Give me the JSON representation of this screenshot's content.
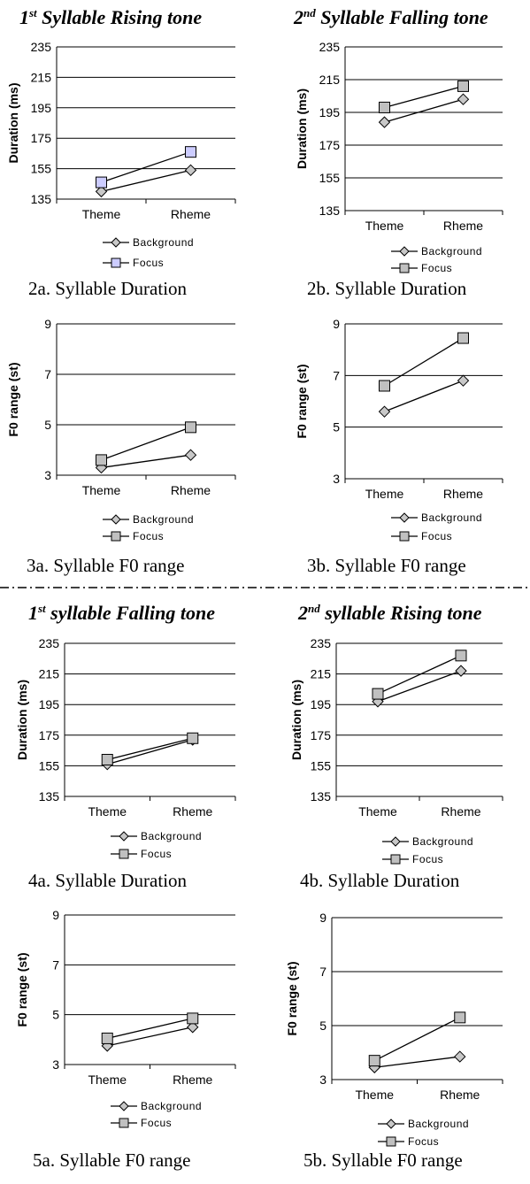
{
  "sections": [
    {
      "title_prefix": "1",
      "title_sup": "st",
      "title_rest": " Syllable Rising tone"
    },
    {
      "title_prefix": "2",
      "title_sup": "nd",
      "title_rest": " Syllable Falling tone"
    },
    {
      "title_prefix": "1",
      "title_sup": "st",
      "title_rest": " syllable Falling tone"
    },
    {
      "title_prefix": "2",
      "title_sup": "nd",
      "title_rest": " syllable Rising tone"
    }
  ],
  "colors": {
    "background_marker": "#c8c8c8",
    "focus_marker": "#c0c0c0",
    "focus_marker_2a": "#ccccff",
    "line": "#000000"
  },
  "chart_data": [
    {
      "id": "2a",
      "type": "line",
      "caption": "2a. Syllable Duration",
      "ylabel": "Duration (ms)",
      "categories": [
        "Theme",
        "Rheme"
      ],
      "ylim": [
        135,
        235
      ],
      "yticks": [
        135,
        155,
        175,
        195,
        215,
        235
      ],
      "grid": true,
      "legend": "bottom",
      "series": [
        {
          "name": "Background",
          "marker": "diamond",
          "values": [
            140,
            154
          ]
        },
        {
          "name": "Focus",
          "marker": "square",
          "values": [
            146,
            166
          ]
        }
      ]
    },
    {
      "id": "2b",
      "type": "line",
      "caption": "2b. Syllable Duration",
      "ylabel": "Duration (ms)",
      "categories": [
        "Theme",
        "Rheme"
      ],
      "ylim": [
        135,
        235
      ],
      "yticks": [
        135,
        155,
        175,
        195,
        215,
        235
      ],
      "grid": true,
      "legend": "bottom",
      "series": [
        {
          "name": "Background",
          "marker": "diamond",
          "values": [
            189,
            203
          ]
        },
        {
          "name": "Focus",
          "marker": "square",
          "values": [
            198,
            211
          ]
        }
      ]
    },
    {
      "id": "3a",
      "type": "line",
      "caption": "3a. Syllable F0 range",
      "ylabel": "F0 range (st)",
      "categories": [
        "Theme",
        "Rheme"
      ],
      "ylim": [
        3,
        9
      ],
      "yticks": [
        3,
        5,
        7,
        9
      ],
      "grid": true,
      "legend": "bottom",
      "series": [
        {
          "name": "Background",
          "marker": "diamond",
          "values": [
            3.3,
            3.8
          ]
        },
        {
          "name": "Focus",
          "marker": "square",
          "values": [
            3.6,
            4.9
          ]
        }
      ]
    },
    {
      "id": "3b",
      "type": "line",
      "caption": "3b. Syllable F0 range",
      "ylabel": "F0 range (st)",
      "categories": [
        "Theme",
        "Rheme"
      ],
      "ylim": [
        3,
        9
      ],
      "yticks": [
        3,
        5,
        7,
        9
      ],
      "grid": true,
      "legend": "bottom",
      "series": [
        {
          "name": "Background",
          "marker": "diamond",
          "values": [
            5.6,
            6.8
          ]
        },
        {
          "name": "Focus",
          "marker": "square",
          "values": [
            6.6,
            8.45
          ]
        }
      ]
    },
    {
      "id": "4a",
      "type": "line",
      "caption": "4a. Syllable Duration",
      "ylabel": "Duration (ms)",
      "categories": [
        "Theme",
        "Rheme"
      ],
      "ylim": [
        135,
        235
      ],
      "yticks": [
        135,
        155,
        175,
        195,
        215,
        235
      ],
      "grid": true,
      "legend": "bottom",
      "series": [
        {
          "name": "Background",
          "marker": "diamond",
          "values": [
            156,
            172
          ]
        },
        {
          "name": "Focus",
          "marker": "square",
          "values": [
            159,
            173
          ]
        }
      ]
    },
    {
      "id": "4b",
      "type": "line",
      "caption": "4b. Syllable Duration",
      "ylabel": "Duration (ms)",
      "categories": [
        "Theme",
        "Rheme"
      ],
      "ylim": [
        135,
        235
      ],
      "yticks": [
        135,
        155,
        175,
        195,
        215,
        235
      ],
      "grid": true,
      "legend": "bottom",
      "series": [
        {
          "name": "Background",
          "marker": "diamond",
          "values": [
            197,
            217
          ]
        },
        {
          "name": "Focus",
          "marker": "square",
          "values": [
            202,
            227
          ]
        }
      ]
    },
    {
      "id": "5a",
      "type": "line",
      "caption": "5a. Syllable F0 range",
      "ylabel": "F0 range (st)",
      "categories": [
        "Theme",
        "Rheme"
      ],
      "ylim": [
        3,
        9
      ],
      "yticks": [
        3,
        5,
        7,
        9
      ],
      "grid": true,
      "legend": "bottom",
      "series": [
        {
          "name": "Background",
          "marker": "diamond",
          "values": [
            3.75,
            4.5
          ]
        },
        {
          "name": "Focus",
          "marker": "square",
          "values": [
            4.05,
            4.85
          ]
        }
      ]
    },
    {
      "id": "5b",
      "type": "line",
      "caption": "5b. Syllable F0 range",
      "ylabel": "F0 range (st)",
      "categories": [
        "Theme",
        "Rheme"
      ],
      "ylim": [
        3,
        9
      ],
      "yticks": [
        3,
        5,
        7,
        9
      ],
      "grid": true,
      "legend": "bottom",
      "series": [
        {
          "name": "Background",
          "marker": "diamond",
          "values": [
            3.45,
            3.85
          ]
        },
        {
          "name": "Focus",
          "marker": "square",
          "values": [
            3.7,
            5.3
          ]
        }
      ]
    }
  ]
}
